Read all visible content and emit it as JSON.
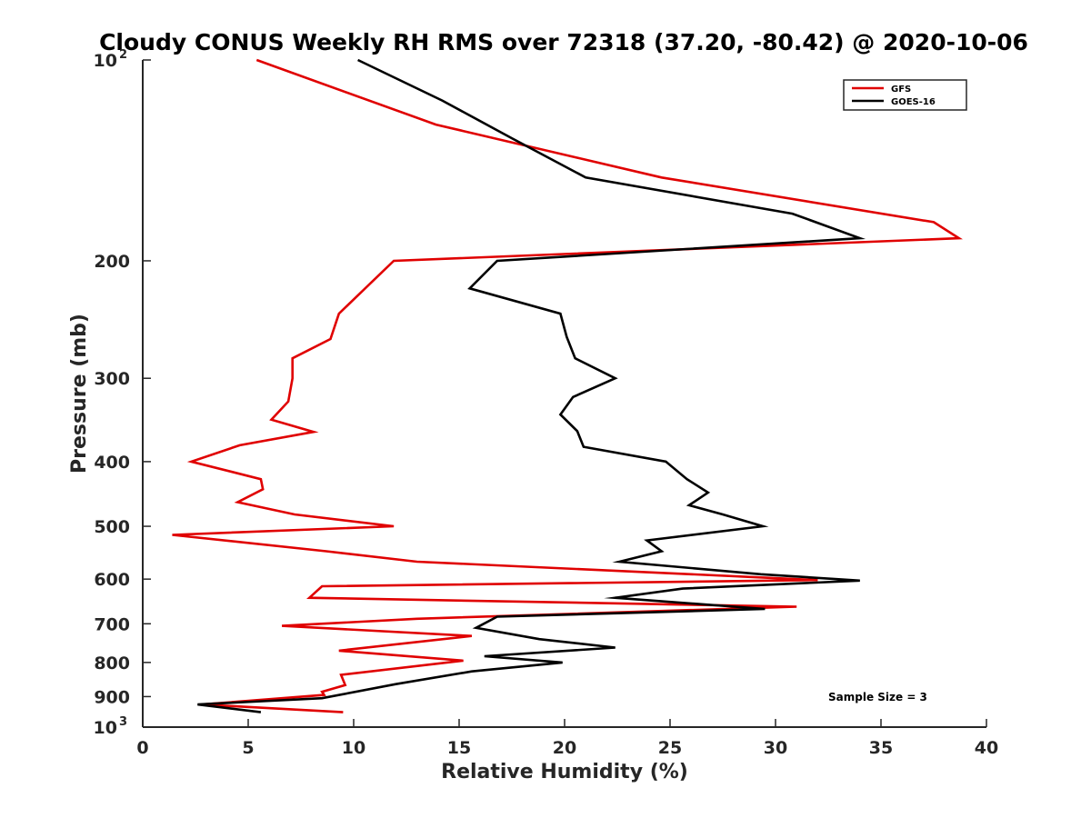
{
  "chart_data": {
    "type": "line",
    "title": "Cloudy CONUS Weekly RH RMS over 72318 (37.20, -80.42) @ 2020-10-06",
    "xlabel": "Relative Humidity (%)",
    "ylabel": "Pressure (mb)",
    "xlim": [
      0,
      40
    ],
    "ylim": [
      100,
      1000
    ],
    "yscale": "log",
    "y_reversed": true,
    "grid": false,
    "legend_position": "top-right",
    "x_ticks": [
      0,
      5,
      10,
      15,
      20,
      25,
      30,
      35,
      40
    ],
    "x_tick_labels": [
      "0",
      "5",
      "10",
      "15",
      "20",
      "25",
      "30",
      "35",
      "40"
    ],
    "y_ticks": [
      100,
      200,
      300,
      400,
      500,
      600,
      700,
      800,
      900,
      1000
    ],
    "y_tick_labels": [
      {
        "base": "10",
        "sup": "2"
      },
      {
        "base": "200",
        "sup": ""
      },
      {
        "base": "300",
        "sup": ""
      },
      {
        "base": "400",
        "sup": ""
      },
      {
        "base": "500",
        "sup": ""
      },
      {
        "base": "600",
        "sup": ""
      },
      {
        "base": "700",
        "sup": ""
      },
      {
        "base": "800",
        "sup": ""
      },
      {
        "base": "900",
        "sup": ""
      },
      {
        "base": "10",
        "sup": "3"
      }
    ],
    "annotation": "Sample Size = 3",
    "series": [
      {
        "name": "GFS",
        "color": "#e00000",
        "points": [
          [
            5.4,
            100
          ],
          [
            13.9,
            125
          ],
          [
            24.6,
            150
          ],
          [
            37.5,
            175
          ],
          [
            38.7,
            185
          ],
          [
            11.9,
            200
          ],
          [
            9.3,
            240
          ],
          [
            8.9,
            262
          ],
          [
            7.1,
            280
          ],
          [
            7.1,
            300
          ],
          [
            6.9,
            325
          ],
          [
            6.1,
            346
          ],
          [
            8.1,
            361
          ],
          [
            4.6,
            378
          ],
          [
            2.3,
            400
          ],
          [
            5.6,
            425
          ],
          [
            5.7,
            440
          ],
          [
            4.5,
            460
          ],
          [
            7.2,
            480
          ],
          [
            11.9,
            500
          ],
          [
            1.4,
            515
          ],
          [
            8.7,
            545
          ],
          [
            13.0,
            565
          ],
          [
            26.0,
            590
          ],
          [
            32.0,
            602
          ],
          [
            8.5,
            615
          ],
          [
            7.9,
            640
          ],
          [
            31.0,
            660
          ],
          [
            13.0,
            688
          ],
          [
            6.6,
            705
          ],
          [
            15.6,
            730
          ],
          [
            9.3,
            768
          ],
          [
            15.2,
            795
          ],
          [
            9.4,
            835
          ],
          [
            9.6,
            865
          ],
          [
            8.5,
            885
          ],
          [
            8.6,
            895
          ],
          [
            2.8,
            925
          ],
          [
            9.5,
            950
          ]
        ]
      },
      {
        "name": "GOES-16",
        "color": "#000000",
        "points": [
          [
            10.2,
            100
          ],
          [
            14.2,
            115
          ],
          [
            17.5,
            131
          ],
          [
            21.0,
            150
          ],
          [
            30.8,
            170
          ],
          [
            34.0,
            185
          ],
          [
            16.8,
            200
          ],
          [
            15.5,
            220
          ],
          [
            19.8,
            240
          ],
          [
            20.1,
            260
          ],
          [
            20.5,
            280
          ],
          [
            22.4,
            300
          ],
          [
            20.4,
            320
          ],
          [
            19.8,
            340
          ],
          [
            20.6,
            360
          ],
          [
            20.9,
            380
          ],
          [
            24.8,
            400
          ],
          [
            25.8,
            425
          ],
          [
            26.8,
            445
          ],
          [
            25.9,
            465
          ],
          [
            27.5,
            480
          ],
          [
            29.4,
            500
          ],
          [
            23.9,
            525
          ],
          [
            24.6,
            545
          ],
          [
            22.6,
            565
          ],
          [
            29.3,
            590
          ],
          [
            34.0,
            603
          ],
          [
            25.6,
            620
          ],
          [
            22.4,
            640
          ],
          [
            29.5,
            665
          ],
          [
            16.8,
            683
          ],
          [
            15.8,
            710
          ],
          [
            18.8,
            738
          ],
          [
            22.4,
            760
          ],
          [
            16.2,
            783
          ],
          [
            19.9,
            800
          ],
          [
            15.6,
            825
          ],
          [
            12.0,
            862
          ],
          [
            8.5,
            905
          ],
          [
            2.6,
            925
          ],
          [
            5.6,
            950
          ]
        ]
      }
    ]
  }
}
